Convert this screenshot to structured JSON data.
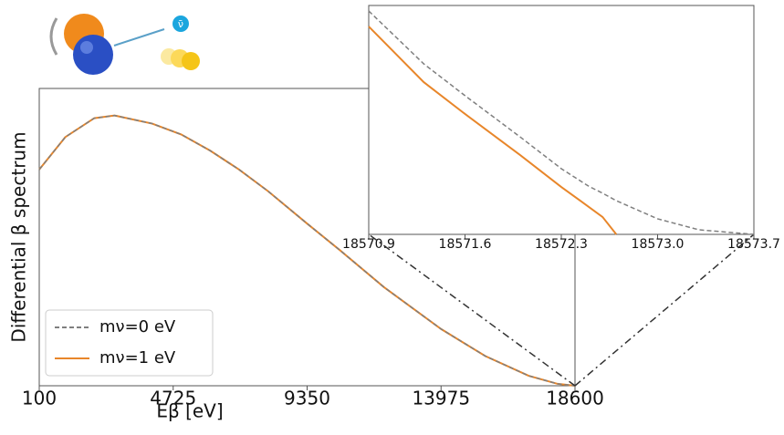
{
  "icon_label": "ν̄",
  "chart_data": [
    {
      "type": "line",
      "xlabel": "Eβ [eV]",
      "ylabel": "Differential β spectrum",
      "x": [
        100,
        1000,
        2000,
        2700,
        4000,
        5000,
        6000,
        7000,
        8000,
        9350,
        10500,
        12000,
        13975,
        15500,
        17000,
        18000,
        18600
      ],
      "series": [
        {
          "name": "mν=0 eV",
          "color": "#7f7f7f",
          "dashed": true,
          "values": [
            0.8,
            0.92,
            0.99,
            1.0,
            0.97,
            0.93,
            0.87,
            0.8,
            0.72,
            0.6,
            0.5,
            0.365,
            0.21,
            0.11,
            0.037,
            0.007,
            0
          ]
        },
        {
          "name": "mν=1 eV",
          "color": "#e8862a",
          "dashed": false,
          "values": [
            0.8,
            0.92,
            0.99,
            1.0,
            0.97,
            0.93,
            0.87,
            0.8,
            0.72,
            0.6,
            0.5,
            0.365,
            0.21,
            0.11,
            0.037,
            0.007,
            0
          ]
        }
      ],
      "xlim": [
        100,
        18600
      ],
      "ylim": [
        0,
        1.1
      ],
      "xticks": [
        100,
        4725,
        9350,
        13975,
        18600
      ],
      "legend": "lower left"
    },
    {
      "type": "line",
      "x": [
        18570.9,
        18571.3,
        18571.6,
        18572.0,
        18572.3,
        18572.5,
        18572.6,
        18572.7,
        18573.0,
        18573.3,
        18573.7
      ],
      "series": [
        {
          "color": "#7f7f7f",
          "dashed": true,
          "values": [
            0.976,
            0.745,
            0.606,
            0.426,
            0.287,
            0.21,
            0.18,
            0.147,
            0.068,
            0.02,
            0
          ]
        },
        {
          "color": "#e8862a",
          "dashed": false,
          "values": [
            0.908,
            0.665,
            0.526,
            0.347,
            0.207,
            0.12,
            0.076,
            0,
            null,
            null,
            null
          ]
        }
      ],
      "xlim": [
        18570.9,
        18573.7
      ],
      "ylim": [
        0,
        1
      ],
      "xticks": [
        18570.9,
        18571.6,
        18572.3,
        {
          "value": 18573.0,
          "label": "18573.0"
        },
        18573.7
      ]
    }
  ]
}
